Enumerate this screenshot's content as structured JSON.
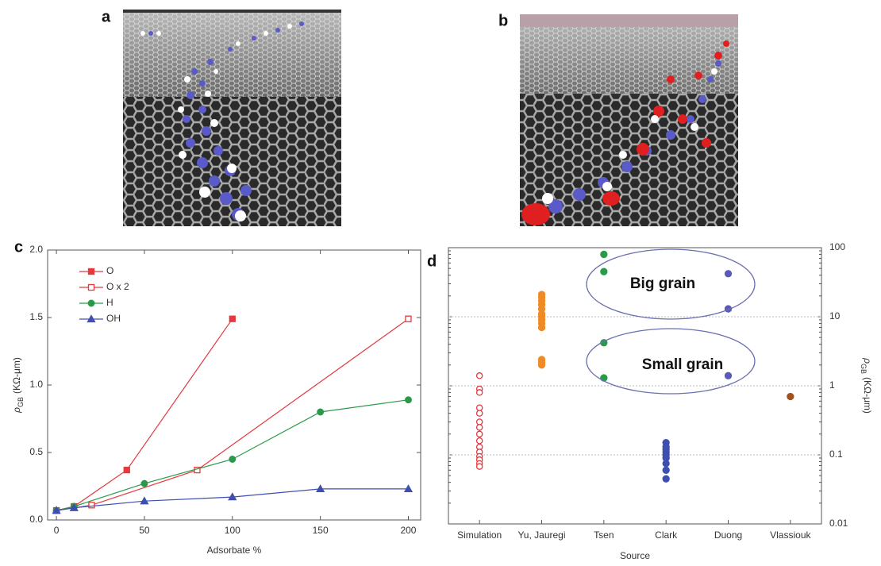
{
  "panel_labels": [
    "a",
    "b",
    "c",
    "d"
  ],
  "chart_data": [
    {
      "type": "line",
      "x_label": "Adsorbate %",
      "y_label": {
        "symbol": "ρ",
        "subscript": "GB",
        "unit": "(KΩ-μm)"
      },
      "xlim": [
        -5,
        207
      ],
      "xticks": [
        0,
        50,
        100,
        150,
        200
      ],
      "ylim": [
        0,
        2
      ],
      "yticks": [
        {
          "value": 0,
          "label": "0.0"
        },
        0.5,
        {
          "value": 1,
          "label": "1.0"
        },
        1.5,
        {
          "value": 2,
          "label": "2.0"
        }
      ],
      "legend": "upper left",
      "series": [
        {
          "name": "O",
          "color": "#e4393f",
          "marker": "square",
          "filled": true,
          "x": [
            0,
            10,
            40,
            100
          ],
          "values": [
            0.07,
            0.1,
            0.37,
            1.49
          ]
        },
        {
          "name": "O x 2",
          "color": "#e4393f",
          "marker": "square",
          "filled": false,
          "x": [
            0,
            20,
            80,
            200
          ],
          "values": [
            0.07,
            0.11,
            0.37,
            1.49
          ]
        },
        {
          "name": "H",
          "color": "#2a9a4a",
          "marker": "circle",
          "filled": true,
          "x": [
            0,
            10,
            50,
            100,
            150,
            200
          ],
          "values": [
            0.07,
            0.1,
            0.27,
            0.45,
            0.8,
            0.89
          ]
        },
        {
          "name": "OH",
          "color": "#3f4fb0",
          "marker": "triangle",
          "filled": true,
          "x": [
            0,
            10,
            50,
            100,
            150,
            200
          ],
          "values": [
            0.07,
            0.09,
            0.14,
            0.17,
            0.23,
            0.23
          ]
        }
      ]
    },
    {
      "type": "strip",
      "x_label": "Source",
      "y_label": {
        "symbol": "ρ",
        "subscript": "GB",
        "unit": "(KΩ-μm)"
      },
      "y_axis_side": "right",
      "log_scale": true,
      "grid": true,
      "ylim": [
        0.01,
        100
      ],
      "yticks": [
        0.01,
        0.1,
        1,
        10,
        100
      ],
      "categories": [
        "Simulation",
        "Yu, Jauregi",
        "Tsen",
        "Clark",
        "Duong",
        "Vlassiouk"
      ],
      "values": [
        [
          1.4,
          0.9,
          0.8,
          0.48,
          0.4,
          0.3,
          0.25,
          0.2,
          0.16,
          0.13,
          0.11,
          0.095,
          0.085,
          0.075,
          0.068
        ],
        [
          21,
          19,
          17,
          15,
          13,
          11,
          10,
          9,
          8,
          7,
          2.4,
          2.2,
          2.0
        ],
        [
          80,
          45,
          4.2,
          1.3
        ],
        [
          0.15,
          0.13,
          0.12,
          0.11,
          0.1,
          0.09,
          0.075,
          0.06,
          0.045
        ],
        [
          42,
          13,
          1.4
        ],
        [
          0.7
        ]
      ],
      "colors": [
        "#e4393f",
        "#f08a24",
        "#2a9a4a",
        "#3f4fb0",
        "#5a5ab8",
        "#a0521e"
      ],
      "filled": [
        false,
        true,
        true,
        true,
        true,
        true
      ],
      "annotations": [
        "Big grain",
        "Small grain"
      ]
    }
  ]
}
